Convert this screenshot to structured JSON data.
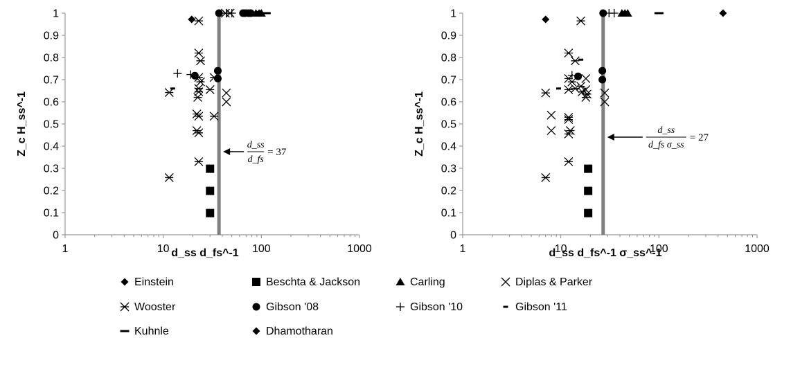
{
  "chart_data": [
    {
      "type": "scatter",
      "x_scale": "log",
      "xlim": [
        1,
        1000
      ],
      "ylim": [
        0,
        1
      ],
      "x_ticks": [
        "1",
        "10",
        "100",
        "1000"
      ],
      "y_ticks": [
        "0",
        "0.1",
        "0.2",
        "0.3",
        "0.4",
        "0.5",
        "0.6",
        "0.7",
        "0.8",
        "0.9",
        "1"
      ],
      "xlabel": "d_ss d_fs^-1",
      "ylabel": "Z_c H_ss^-1",
      "grid": false,
      "reference_line": {
        "x": 37,
        "color": "#808080"
      },
      "annotation": {
        "num": "d_ss",
        "den": "d_fs",
        "value": "= 37"
      },
      "series": [
        {
          "name": "Einstein",
          "marker": "diamond",
          "points": [
            [
              19.5,
              0.972
            ]
          ]
        },
        {
          "name": "Beschta & Jackson",
          "marker": "square",
          "points": [
            [
              30,
              0.298
            ],
            [
              30,
              0.198
            ],
            [
              30,
              0.098
            ]
          ]
        },
        {
          "name": "Carling",
          "marker": "triangle",
          "points": [
            [
              70,
              1
            ],
            [
              78,
              1
            ],
            [
              88,
              1
            ],
            [
              100,
              1
            ]
          ]
        },
        {
          "name": "Diplas & Parker",
          "marker": "x",
          "points": [
            [
              44,
              0.64
            ],
            [
              44,
              0.6
            ]
          ]
        },
        {
          "name": "Wooster",
          "marker": "asterisk",
          "points": [
            [
              23,
              0.965
            ],
            [
              23,
              0.82
            ],
            [
              24,
              0.785
            ],
            [
              23,
              0.71
            ],
            [
              24,
              0.69
            ],
            [
              23,
              0.66
            ],
            [
              23,
              0.645
            ],
            [
              22.5,
              0.62
            ],
            [
              22,
              0.545
            ],
            [
              23,
              0.535
            ],
            [
              22,
              0.47
            ],
            [
              23,
              0.46
            ],
            [
              23,
              0.33
            ],
            [
              11.5,
              0.642
            ],
            [
              11.5,
              0.258
            ],
            [
              30,
              0.655
            ],
            [
              33,
              0.71
            ],
            [
              33,
              0.535
            ],
            [
              43,
              1
            ],
            [
              48,
              1
            ]
          ]
        },
        {
          "name": "Gibson '08",
          "marker": "circle",
          "points": [
            [
              37,
              1
            ],
            [
              36,
              0.74
            ],
            [
              36,
              0.705
            ],
            [
              21,
              0.718
            ],
            [
              65,
              1
            ],
            [
              68,
              1
            ],
            [
              74,
              1
            ],
            [
              78,
              1
            ]
          ]
        },
        {
          "name": "Gibson '10",
          "marker": "plus",
          "points": [
            [
              14,
              0.728
            ],
            [
              19,
              0.723
            ],
            [
              44,
              1
            ],
            [
              50,
              1
            ]
          ]
        },
        {
          "name": "Gibson '11",
          "marker": "dash",
          "points": [
            [
              12.5,
              0.66
            ]
          ]
        },
        {
          "name": "Kuhnle",
          "marker": "longdash",
          "points": [
            [
              112,
              1
            ]
          ]
        },
        {
          "name": "Dhamotharan",
          "marker": "diamond",
          "points": [
            [
              95,
              1
            ]
          ]
        }
      ]
    },
    {
      "type": "scatter",
      "x_scale": "log",
      "xlim": [
        1,
        1000
      ],
      "ylim": [
        0,
        1
      ],
      "x_ticks": [
        "1",
        "10",
        "100",
        "1000"
      ],
      "y_ticks": [
        "0",
        "0.1",
        "0.2",
        "0.3",
        "0.4",
        "0.5",
        "0.6",
        "0.7",
        "0.8",
        "0.9",
        "1"
      ],
      "xlabel": "d_ss d_fs^-1 σ_ss^-1",
      "ylabel": "Z_c H_ss^-1",
      "grid": false,
      "reference_line": {
        "x": 27,
        "color": "#808080"
      },
      "annotation": {
        "num": "d_ss",
        "den": "d_fs σ_ss",
        "value": "= 27"
      },
      "series": [
        {
          "name": "Einstein",
          "marker": "diamond",
          "points": [
            [
              7,
              0.972
            ]
          ]
        },
        {
          "name": "Beschta & Jackson",
          "marker": "square",
          "points": [
            [
              19,
              0.298
            ],
            [
              19,
              0.198
            ],
            [
              19,
              0.098
            ]
          ]
        },
        {
          "name": "Carling",
          "marker": "triangle",
          "points": [
            [
              42,
              1
            ],
            [
              45,
              1
            ],
            [
              48,
              1
            ]
          ]
        },
        {
          "name": "Diplas & Parker",
          "marker": "x",
          "points": [
            [
              8,
              0.54
            ],
            [
              8,
              0.47
            ],
            [
              18,
              0.705
            ],
            [
              18,
              0.655
            ],
            [
              28,
              0.64
            ],
            [
              28,
              0.6
            ]
          ]
        },
        {
          "name": "Wooster",
          "marker": "asterisk",
          "points": [
            [
              16,
              0.965
            ],
            [
              12,
              0.82
            ],
            [
              14,
              0.785
            ],
            [
              12,
              0.705
            ],
            [
              13,
              0.69
            ],
            [
              12,
              0.655
            ],
            [
              14,
              0.66
            ],
            [
              16,
              0.67
            ],
            [
              16.5,
              0.645
            ],
            [
              18.5,
              0.635
            ],
            [
              18,
              0.62
            ],
            [
              12,
              0.53
            ],
            [
              12,
              0.52
            ],
            [
              12.5,
              0.47
            ],
            [
              12,
              0.455
            ],
            [
              12,
              0.33
            ],
            [
              7,
              0.64
            ],
            [
              7,
              0.258
            ]
          ]
        },
        {
          "name": "Gibson '08",
          "marker": "circle",
          "points": [
            [
              27,
              1
            ],
            [
              26.5,
              0.74
            ],
            [
              26.5,
              0.7
            ],
            [
              15,
              0.715
            ]
          ]
        },
        {
          "name": "Gibson '10",
          "marker": "plus",
          "points": [
            [
              31,
              1
            ],
            [
              35,
              1
            ],
            [
              13,
              0.72
            ]
          ]
        },
        {
          "name": "Gibson '11",
          "marker": "dash",
          "points": [
            [
              9.5,
              0.66
            ],
            [
              16,
              0.79
            ]
          ]
        },
        {
          "name": "Kuhnle",
          "marker": "longdash",
          "points": [
            [
              100,
              1
            ]
          ]
        },
        {
          "name": "Dhamotharan",
          "marker": "diamond",
          "points": [
            [
              450,
              1
            ]
          ]
        }
      ]
    }
  ],
  "legend": {
    "placement": "bottom",
    "entries": [
      {
        "label": "Einstein",
        "marker": "diamond"
      },
      {
        "label": "Beschta & Jackson",
        "marker": "square"
      },
      {
        "label": "Carling",
        "marker": "triangle"
      },
      {
        "label": "Diplas & Parker",
        "marker": "x"
      },
      {
        "label": "Wooster",
        "marker": "asterisk"
      },
      {
        "label": "Gibson '08",
        "marker": "circle"
      },
      {
        "label": "Gibson '10",
        "marker": "plus"
      },
      {
        "label": "Gibson '11",
        "marker": "dash"
      },
      {
        "label": "Kuhnle",
        "marker": "longdash"
      },
      {
        "label": "Dhamotharan",
        "marker": "diamond"
      }
    ]
  }
}
